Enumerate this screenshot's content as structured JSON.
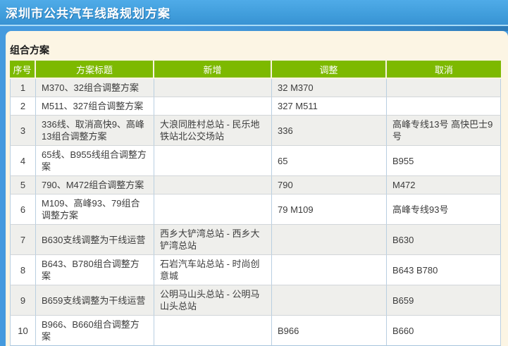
{
  "page": {
    "title": "深圳市公共汽车线路规划方案",
    "section_title": "组合方案"
  },
  "colors": {
    "titlebar_blue": "#3f9cda",
    "page_blue": "#459ade",
    "panel_cream": "#fcf5e4",
    "header_green": "#7db900",
    "row_stripe": "#efefec"
  },
  "table": {
    "columns": [
      "序号",
      "方案标题",
      "新增",
      "调整",
      "取消"
    ],
    "rows": [
      {
        "no": "1",
        "title": "M370、32组合调整方案",
        "new": "",
        "adjust": "32 M370",
        "cancel": ""
      },
      {
        "no": "2",
        "title": "M511、327组合调整方案",
        "new": "",
        "adjust": "327 M511",
        "cancel": ""
      },
      {
        "no": "3",
        "title": "336线、取消高快9、高峰13组合调整方案",
        "new": "大浪同胜村总站 - 民乐地铁站北公交场站",
        "adjust": "336",
        "cancel": "高峰专线13号 高快巴士9号"
      },
      {
        "no": "4",
        "title": "65线、B955线组合调整方案",
        "new": "",
        "adjust": "65",
        "cancel": "B955"
      },
      {
        "no": "5",
        "title": "790、M472组合调整方案",
        "new": "",
        "adjust": "790",
        "cancel": "M472"
      },
      {
        "no": "6",
        "title": "M109、高峰93、79组合调整方案",
        "new": "",
        "adjust": "79 M109",
        "cancel": "高峰专线93号"
      },
      {
        "no": "7",
        "title": "B630支线调整为干线运营",
        "new": "西乡大铲湾总站 - 西乡大铲湾总站",
        "adjust": "",
        "cancel": "B630"
      },
      {
        "no": "8",
        "title": "B643、B780组合调整方案",
        "new": "石岩汽车站总站 - 时尚创意城",
        "adjust": "",
        "cancel": "B643 B780"
      },
      {
        "no": "9",
        "title": "B659支线调整为干线运营",
        "new": "公明马山头总站 - 公明马山头总站",
        "adjust": "",
        "cancel": "B659"
      },
      {
        "no": "10",
        "title": "B966、B660组合调整方案",
        "new": "",
        "adjust": "B966",
        "cancel": "B660"
      }
    ]
  }
}
